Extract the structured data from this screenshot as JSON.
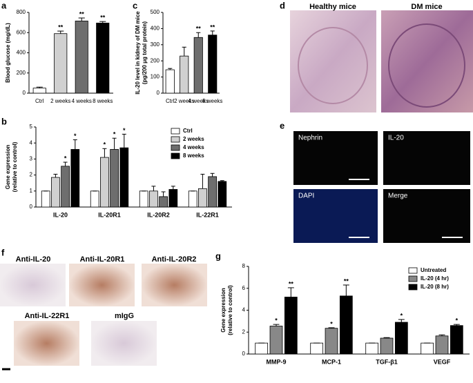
{
  "chart_data": [
    {
      "type": "bar",
      "categories": [
        "Ctrl",
        "2 weeks",
        "4 weeks",
        "8 weeks"
      ],
      "values": [
        50,
        590,
        715,
        695
      ],
      "errors": [
        10,
        25,
        30,
        15
      ],
      "colors": [
        "#ffffff",
        "#d0d0d0",
        "#6e6e6e",
        "#000000"
      ],
      "annotations": [
        null,
        "**",
        "**",
        "**"
      ],
      "ylabel": [
        "Blood glucose (mg/dL)"
      ],
      "ylim": [
        0,
        800
      ],
      "yticks": [
        0,
        200,
        400,
        600,
        800
      ]
    },
    {
      "type": "bar",
      "categories": [
        "IL-20",
        "IL-20R1",
        "IL-20R2",
        "IL-22R1"
      ],
      "series": [
        {
          "name": "Ctrl",
          "color": "#ffffff",
          "values": [
            1,
            1,
            1,
            1
          ],
          "errors": [
            0,
            0,
            0,
            0
          ],
          "annotations": [
            null,
            null,
            null,
            null
          ]
        },
        {
          "name": "2 weeks",
          "color": "#d0d0d0",
          "values": [
            1.85,
            3.1,
            1.0,
            1.15
          ],
          "errors": [
            0.2,
            0.55,
            0.3,
            0.9
          ],
          "annotations": [
            null,
            "*",
            null,
            null
          ]
        },
        {
          "name": "4 weeks",
          "color": "#6e6e6e",
          "values": [
            2.55,
            3.6,
            0.65,
            1.9
          ],
          "errors": [
            0.25,
            0.7,
            0.3,
            0.2
          ],
          "annotations": [
            "*",
            "*",
            null,
            null
          ]
        },
        {
          "name": "8 weeks",
          "color": "#000000",
          "values": [
            3.6,
            3.7,
            1.1,
            1.6
          ],
          "errors": [
            0.6,
            0.85,
            0.2,
            0.05
          ],
          "annotations": [
            "*",
            "*",
            null,
            null
          ]
        }
      ],
      "ylabel": [
        "Gene expression",
        "(relative to control)"
      ],
      "ylim": [
        0,
        5
      ],
      "yticks": [
        0,
        1,
        2,
        3,
        4,
        5
      ],
      "legend": "upper right"
    },
    {
      "type": "bar",
      "categories": [
        "Ctrl",
        "2 weeks",
        "4 weeks",
        "8 weeks"
      ],
      "values": [
        145,
        230,
        345,
        360
      ],
      "errors": [
        8,
        55,
        30,
        25
      ],
      "colors": [
        "#ffffff",
        "#d0d0d0",
        "#6e6e6e",
        "#000000"
      ],
      "annotations": [
        null,
        null,
        "**",
        "**"
      ],
      "ylabel": [
        "IL-20 level in kidney of DM mice",
        "(pg/200 μg total protein)"
      ],
      "ylim": [
        0,
        500
      ],
      "yticks": [
        0,
        100,
        200,
        300,
        400,
        500
      ]
    },
    {
      "type": "bar",
      "categories": [
        "MMP-9",
        "MCP-1",
        "TGF-β1",
        "VEGF"
      ],
      "series": [
        {
          "name": "Untreated",
          "color": "#ffffff",
          "values": [
            1,
            1,
            1,
            1
          ],
          "errors": [
            0,
            0,
            0,
            0
          ],
          "annotations": [
            null,
            null,
            null,
            null
          ]
        },
        {
          "name": "IL-20 (4 hr)",
          "color": "#888888",
          "values": [
            2.55,
            2.35,
            1.45,
            1.65
          ],
          "errors": [
            0.15,
            0.05,
            0.05,
            0.1
          ],
          "annotations": [
            "*",
            "*",
            null,
            null
          ]
        },
        {
          "name": "IL-20 (8 hr)",
          "color": "#000000",
          "values": [
            5.2,
            5.3,
            2.9,
            2.6
          ],
          "errors": [
            0.85,
            1.0,
            0.25,
            0.1
          ],
          "annotations": [
            "**",
            "**",
            "*",
            "*"
          ]
        }
      ],
      "ylabel": [
        "Gene expression",
        "(relative to control)"
      ],
      "ylim": [
        0,
        8
      ],
      "yticks": [
        0,
        2,
        4,
        6,
        8
      ],
      "legend": "upper right"
    }
  ],
  "panel_labels": [
    "a",
    "b",
    "c",
    "d",
    "e",
    "f",
    "g"
  ],
  "histology": {
    "labels": [
      "Healthy mice",
      "DM mice"
    ]
  },
  "fluorescence": {
    "labels": [
      "Nephrin",
      "IL-20",
      "DAPI",
      "Merge"
    ]
  },
  "staining": {
    "labels": [
      "Anti-IL-20",
      "Anti-IL-20R1",
      "Anti-IL-20R2",
      "Anti-IL-22R1",
      "mIgG"
    ]
  }
}
